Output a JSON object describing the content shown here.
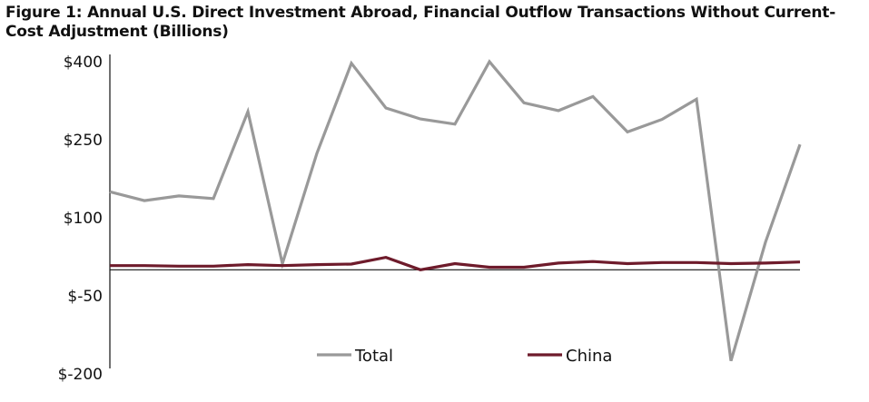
{
  "chart_data": {
    "type": "line",
    "title": "Figure 1: Annual U.S. Direct Investment Abroad, Financial Outflow Transactions Without Current-Cost Adjustment (Billions)",
    "xlabel": "",
    "ylabel": "",
    "ylim": [
      -200,
      400
    ],
    "yticks": [
      400,
      250,
      100,
      -50,
      -200
    ],
    "ytick_labels": [
      "$400",
      "$250",
      "$100",
      "$-50",
      "$-200"
    ],
    "grid": false,
    "legend_position": "bottom-center",
    "x": [
      0,
      1,
      2,
      3,
      4,
      5,
      6,
      7,
      8,
      9,
      10,
      11,
      12,
      13,
      14,
      15,
      16,
      17,
      18,
      19,
      20
    ],
    "series": [
      {
        "name": "Total",
        "color": "#999999",
        "values": [
          150,
          133,
          142,
          137,
          304,
          12,
          224,
          397,
          311,
          290,
          280,
          400,
          321,
          306,
          333,
          265,
          289,
          328,
          -175,
          53,
          241
        ]
      },
      {
        "name": "China",
        "color": "#6e1b2b",
        "values": [
          8,
          8,
          7,
          7,
          10,
          8,
          10,
          11,
          24,
          0,
          12,
          5,
          5,
          13,
          16,
          12,
          14,
          14,
          12,
          13,
          15
        ]
      }
    ]
  }
}
